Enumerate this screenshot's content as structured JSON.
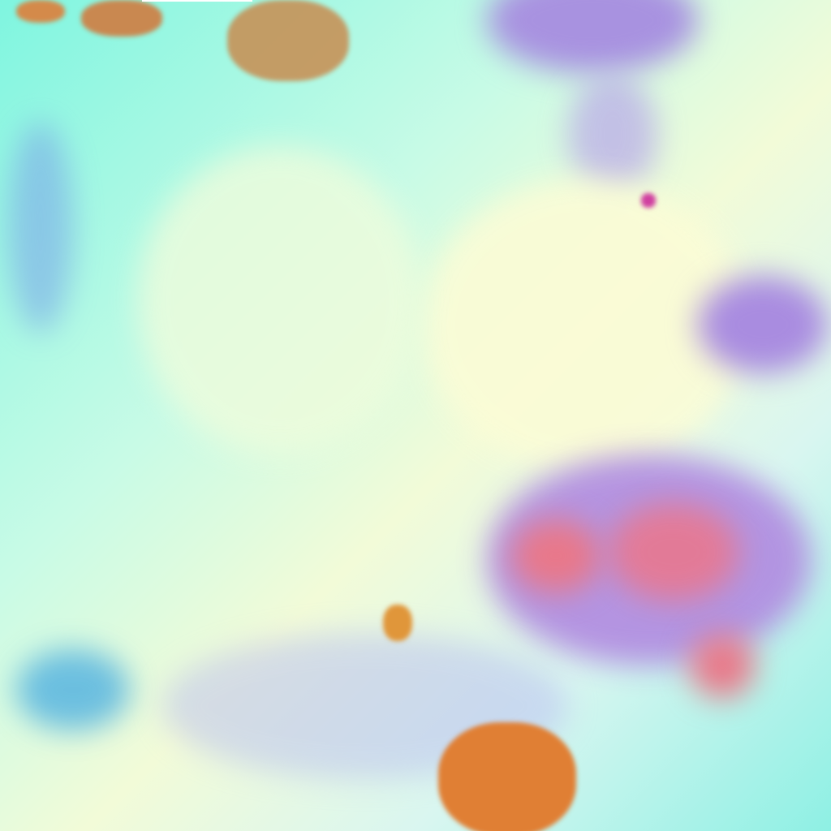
{
  "image": {
    "kind": "false-color satellite imagery",
    "colors": {
      "cloud_cyan": "#7ff5e0",
      "cloud_pale": "#f2fbd8",
      "violet_cloud": "#a58ae0",
      "red_convective": "#e8707a",
      "land_orange": "#d98a3a"
    }
  }
}
